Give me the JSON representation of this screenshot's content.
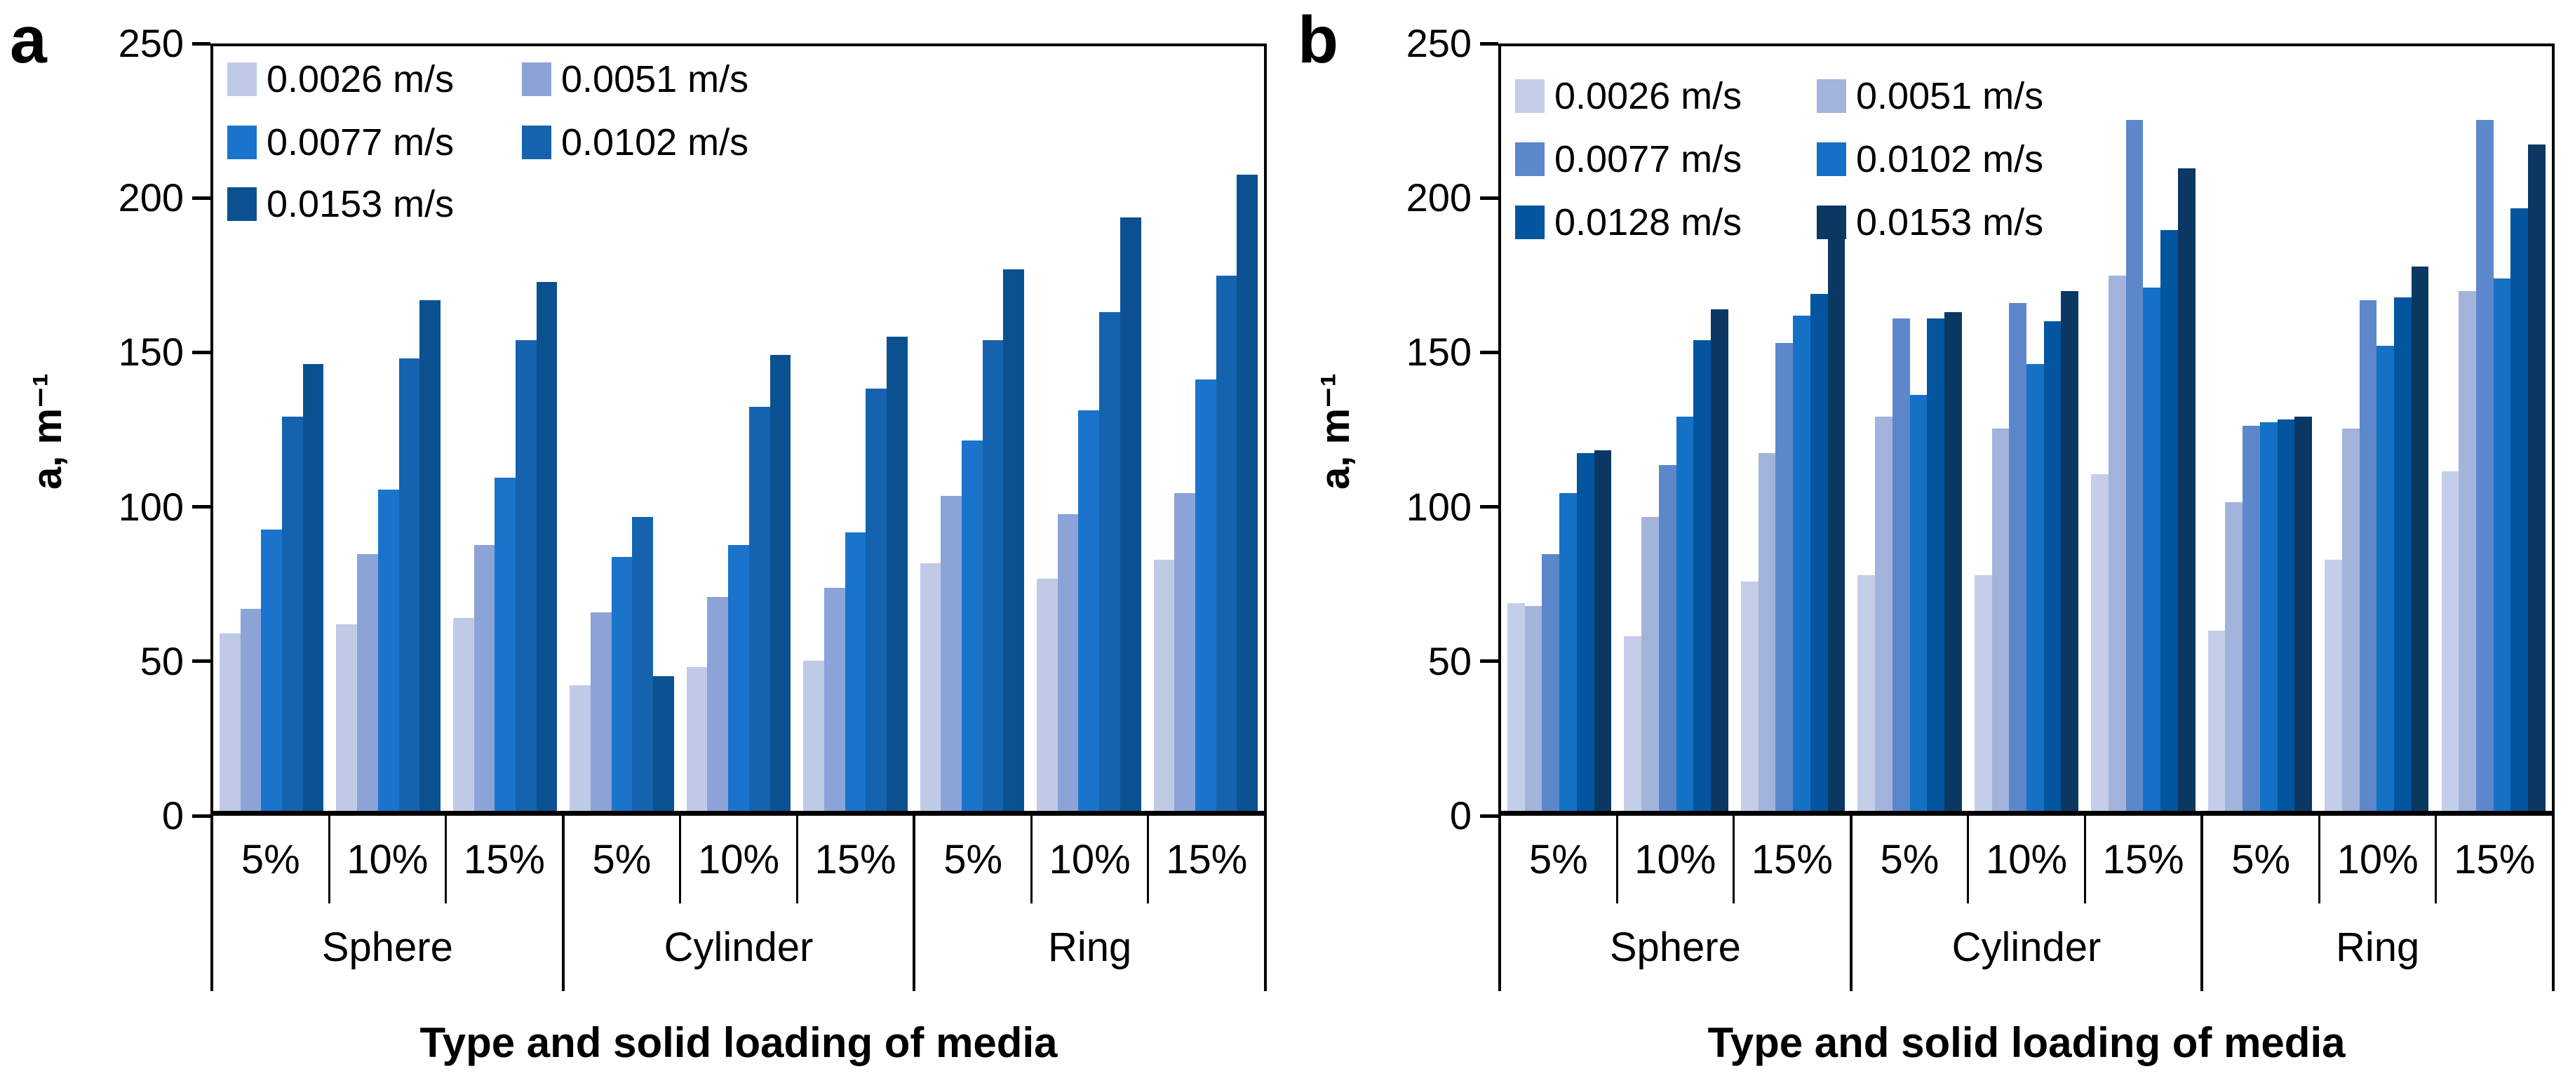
{
  "chart_data": [
    {
      "type": "bar",
      "panel_label": "a",
      "ylabel": "a, m⁻¹",
      "xlabel": "Type and solid loading of media",
      "ylim": [
        0,
        250
      ],
      "yticks": [
        0,
        50,
        100,
        150,
        200,
        250
      ],
      "grid": false,
      "legend_position": "top-left-inside",
      "legend_columns": 2,
      "media_types": [
        "Sphere",
        "Cylinder",
        "Ring"
      ],
      "loadings": [
        "5%",
        "10%",
        "15%"
      ],
      "group_order": [
        "Sphere 5%",
        "Sphere 10%",
        "Sphere 15%",
        "Cylinder 5%",
        "Cylinder 10%",
        "Cylinder 15%",
        "Ring 5%",
        "Ring 10%",
        "Ring 15%"
      ],
      "series": [
        {
          "name": "0.0026 m/s",
          "color": "#BFCBE6",
          "values": [
            58,
            61,
            63,
            41,
            47,
            49,
            81,
            76,
            82
          ]
        },
        {
          "name": "0.0051 m/s",
          "color": "#8CA3D8",
          "values": [
            66,
            84,
            87,
            65,
            70,
            73,
            103,
            97,
            104
          ]
        },
        {
          "name": "0.0077 m/s",
          "color": "#1B74CC",
          "values": [
            92,
            105,
            109,
            83,
            87,
            91,
            121,
            131,
            141
          ]
        },
        {
          "name": "0.0102 m/s",
          "color": "#1563AE",
          "values": [
            129,
            148,
            154,
            96,
            132,
            138,
            154,
            163,
            175
          ]
        },
        {
          "name": "0.0153 m/s",
          "color": "#0B5191",
          "values": [
            146,
            167,
            173,
            44,
            149,
            155,
            177,
            194,
            208
          ]
        }
      ],
      "legend_rows_y": [
        20,
        110,
        198
      ],
      "legend_cols_x": [
        20,
        440
      ]
    },
    {
      "type": "bar",
      "panel_label": "b",
      "ylabel": "a, m⁻¹",
      "xlabel": "Type and solid loading of media",
      "ylim": [
        0,
        250
      ],
      "yticks": [
        0,
        50,
        100,
        150,
        200,
        250
      ],
      "grid": false,
      "legend_position": "top-left-inside",
      "legend_columns": 2,
      "media_types": [
        "Sphere",
        "Cylinder",
        "Ring"
      ],
      "loadings": [
        "5%",
        "10%",
        "15%"
      ],
      "group_order": [
        "Sphere 5%",
        "Sphere 10%",
        "Sphere 15%",
        "Cylinder 5%",
        "Cylinder 10%",
        "Cylinder 15%",
        "Ring 5%",
        "Ring 10%",
        "Ring 15%"
      ],
      "series": [
        {
          "name": "0.0026 m/s",
          "color": "#C4CEE8",
          "values": [
            68,
            57,
            75,
            77,
            77,
            110,
            59,
            82,
            111
          ]
        },
        {
          "name": "0.0051 m/s",
          "color": "#A2B3DC",
          "values": [
            67,
            96,
            117,
            129,
            125,
            175,
            101,
            125,
            170
          ]
        },
        {
          "name": "0.0077 m/s",
          "color": "#5C87CB",
          "values": [
            84,
            113,
            153,
            161,
            166,
            226,
            126,
            167,
            226
          ]
        },
        {
          "name": "0.0102 m/s",
          "color": "#1571C6",
          "values": [
            104,
            129,
            162,
            136,
            146,
            171,
            127,
            152,
            174
          ]
        },
        {
          "name": "0.0128 m/s",
          "color": "#02559E",
          "values": [
            117,
            154,
            169,
            161,
            160,
            190,
            128,
            168,
            197
          ]
        },
        {
          "name": "0.0153 m/s",
          "color": "#0B3763",
          "values": [
            118,
            164,
            187,
            163,
            170,
            210,
            129,
            178,
            218
          ]
        }
      ],
      "legend_rows_y": [
        44,
        134,
        224
      ],
      "legend_cols_x": [
        20,
        450
      ]
    }
  ]
}
